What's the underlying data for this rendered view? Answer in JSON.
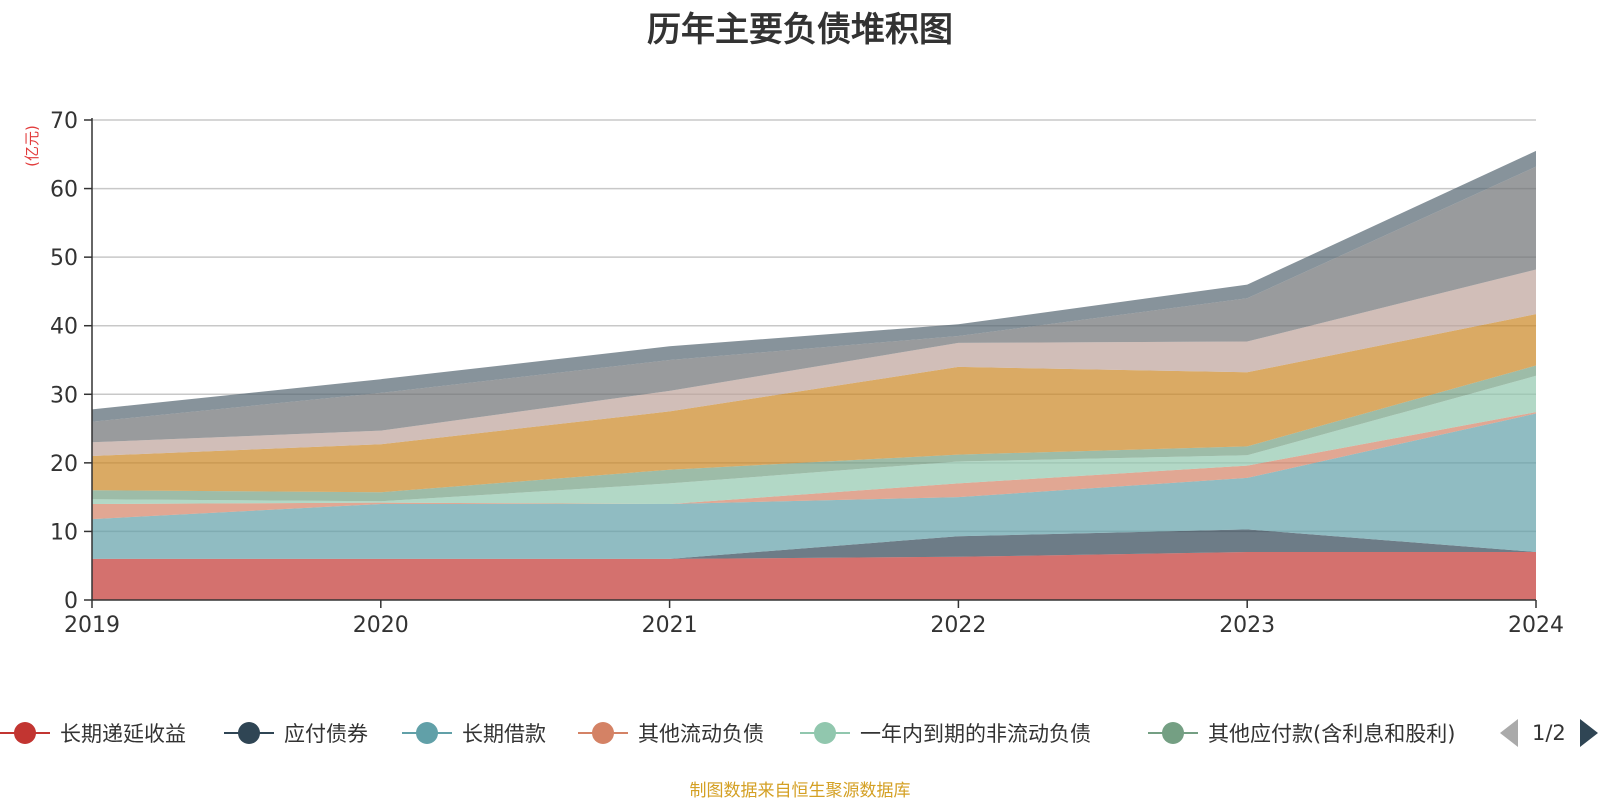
{
  "chart_data": {
    "type": "area",
    "stacked": true,
    "title": "历年主要负债堆积图",
    "ylabel": "(亿元)",
    "source_note": "制图数据来自恒生聚源数据库",
    "categories": [
      "2019",
      "2020",
      "2021",
      "2022",
      "2023",
      "2024"
    ],
    "y_ticks": [
      "0",
      "10",
      "20",
      "30",
      "40",
      "50",
      "60",
      "70"
    ],
    "ylim": [
      0,
      70
    ],
    "grid": true,
    "legend_position": "bottom",
    "legend_page": "1/2",
    "series": [
      {
        "name": "长期递延收益",
        "color": "#c23531",
        "values": [
          6.0,
          6.0,
          6.0,
          6.3,
          7.0,
          7.0
        ]
      },
      {
        "name": "应付债券",
        "color": "#2f4554",
        "values": [
          0.0,
          0.0,
          0.0,
          3.0,
          3.3,
          0.0
        ]
      },
      {
        "name": "长期借款",
        "color": "#61a0a8",
        "values": [
          5.8,
          8.0,
          8.0,
          5.7,
          7.5,
          20.2
        ]
      },
      {
        "name": "其他流动负债",
        "color": "#d48265",
        "values": [
          2.2,
          0.2,
          0.0,
          2.0,
          1.8,
          0.2
        ]
      },
      {
        "name": "一年内到期的非流动负债",
        "color": "#91c7ae",
        "values": [
          0.7,
          0.2,
          3.0,
          3.2,
          1.5,
          5.3
        ]
      },
      {
        "name": "其他应付款(含利息和股利)",
        "color": "#749f83",
        "values": [
          1.3,
          1.3,
          2.0,
          1.0,
          1.3,
          1.5
        ]
      },
      {
        "name": "",
        "color": "#ca8622",
        "values": [
          5.0,
          7.0,
          8.5,
          12.8,
          10.8,
          7.5
        ]
      },
      {
        "name": "",
        "color": "#bda29a",
        "values": [
          2.0,
          2.0,
          3.0,
          3.5,
          4.5,
          6.5
        ]
      },
      {
        "name": "",
        "color": "#6e7074",
        "values": [
          3.0,
          5.5,
          4.5,
          1.0,
          6.3,
          15.0
        ]
      },
      {
        "name": "",
        "color": "#546570",
        "values": [
          1.8,
          2.0,
          2.0,
          1.7,
          2.0,
          2.3
        ]
      }
    ]
  }
}
